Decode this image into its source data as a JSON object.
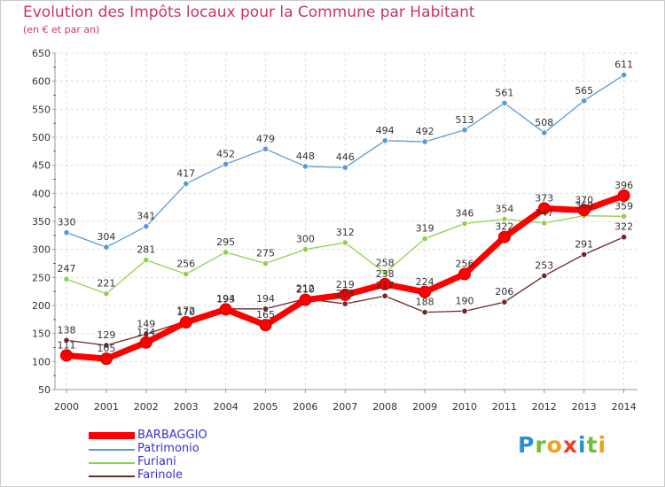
{
  "chart_data": {
    "type": "line",
    "title": "Evolution des Impôts locaux pour la Commune par Habitant",
    "subtitle": "(en € et par an)",
    "xlabel": "",
    "ylabel": "",
    "ylim": [
      50,
      650
    ],
    "y_ticks": [
      "50",
      "100",
      "150",
      "200",
      "250",
      "300",
      "350",
      "400",
      "450",
      "500",
      "550",
      "600",
      "650"
    ],
    "categories": [
      "2000",
      "2001",
      "2002",
      "2003",
      "2004",
      "2005",
      "2006",
      "2007",
      "2008",
      "2009",
      "2010",
      "2011",
      "2012",
      "2013",
      "2014"
    ],
    "grid": true,
    "legend_position": "bottom-left",
    "series": [
      {
        "name": "BARBAGGIO",
        "color": "#ff0000",
        "values": [
          111,
          105,
          134,
          170,
          193,
          165,
          210,
          219,
          238,
          224,
          256,
          322,
          373,
          370,
          396
        ],
        "labels": [
          "111",
          "105",
          "134",
          "170",
          "193",
          "165",
          "210",
          "219",
          "238",
          "224",
          "256",
          "322",
          "373",
          "370",
          "396"
        ]
      },
      {
        "name": "Patrimonio",
        "color": "#5b9bd5",
        "values": [
          330,
          304,
          341,
          417,
          452,
          479,
          448,
          446,
          494,
          492,
          513,
          561,
          508,
          565,
          611
        ],
        "labels": [
          "330",
          "304",
          "341",
          "417",
          "452",
          "479",
          "448",
          "446",
          "494",
          "492",
          "513",
          "561",
          "508",
          "565",
          "611"
        ]
      },
      {
        "name": "Furiani",
        "color": "#8fd14f",
        "values": [
          247,
          221,
          281,
          256,
          295,
          275,
          300,
          312,
          258,
          319,
          346,
          354,
          347,
          360,
          359
        ],
        "labels": [
          "247",
          "221",
          "281",
          "256",
          "295",
          "275",
          "300",
          "312",
          "258",
          "319",
          "346",
          "354",
          "347",
          "360",
          "359"
        ]
      },
      {
        "name": "Farinole",
        "color": "#6b2a2a",
        "values": [
          138,
          129,
          149,
          172,
          194,
          194,
          212,
          203,
          217,
          188,
          190,
          206,
          253,
          291,
          322
        ],
        "labels": [
          "138",
          "129",
          "149",
          "172",
          "194",
          "194",
          "212",
          "203",
          "217",
          "188",
          "190",
          "206",
          "253",
          "291",
          "322"
        ]
      }
    ]
  },
  "watermark": {
    "letters": [
      "P",
      "r",
      "o",
      "x",
      "i",
      "t",
      "i"
    ],
    "colors": [
      "#2a8fd8",
      "#6bbf3a",
      "#f0a020",
      "#e8402a",
      "#2a8fd8",
      "#6bbf3a",
      "#f0a020"
    ]
  }
}
